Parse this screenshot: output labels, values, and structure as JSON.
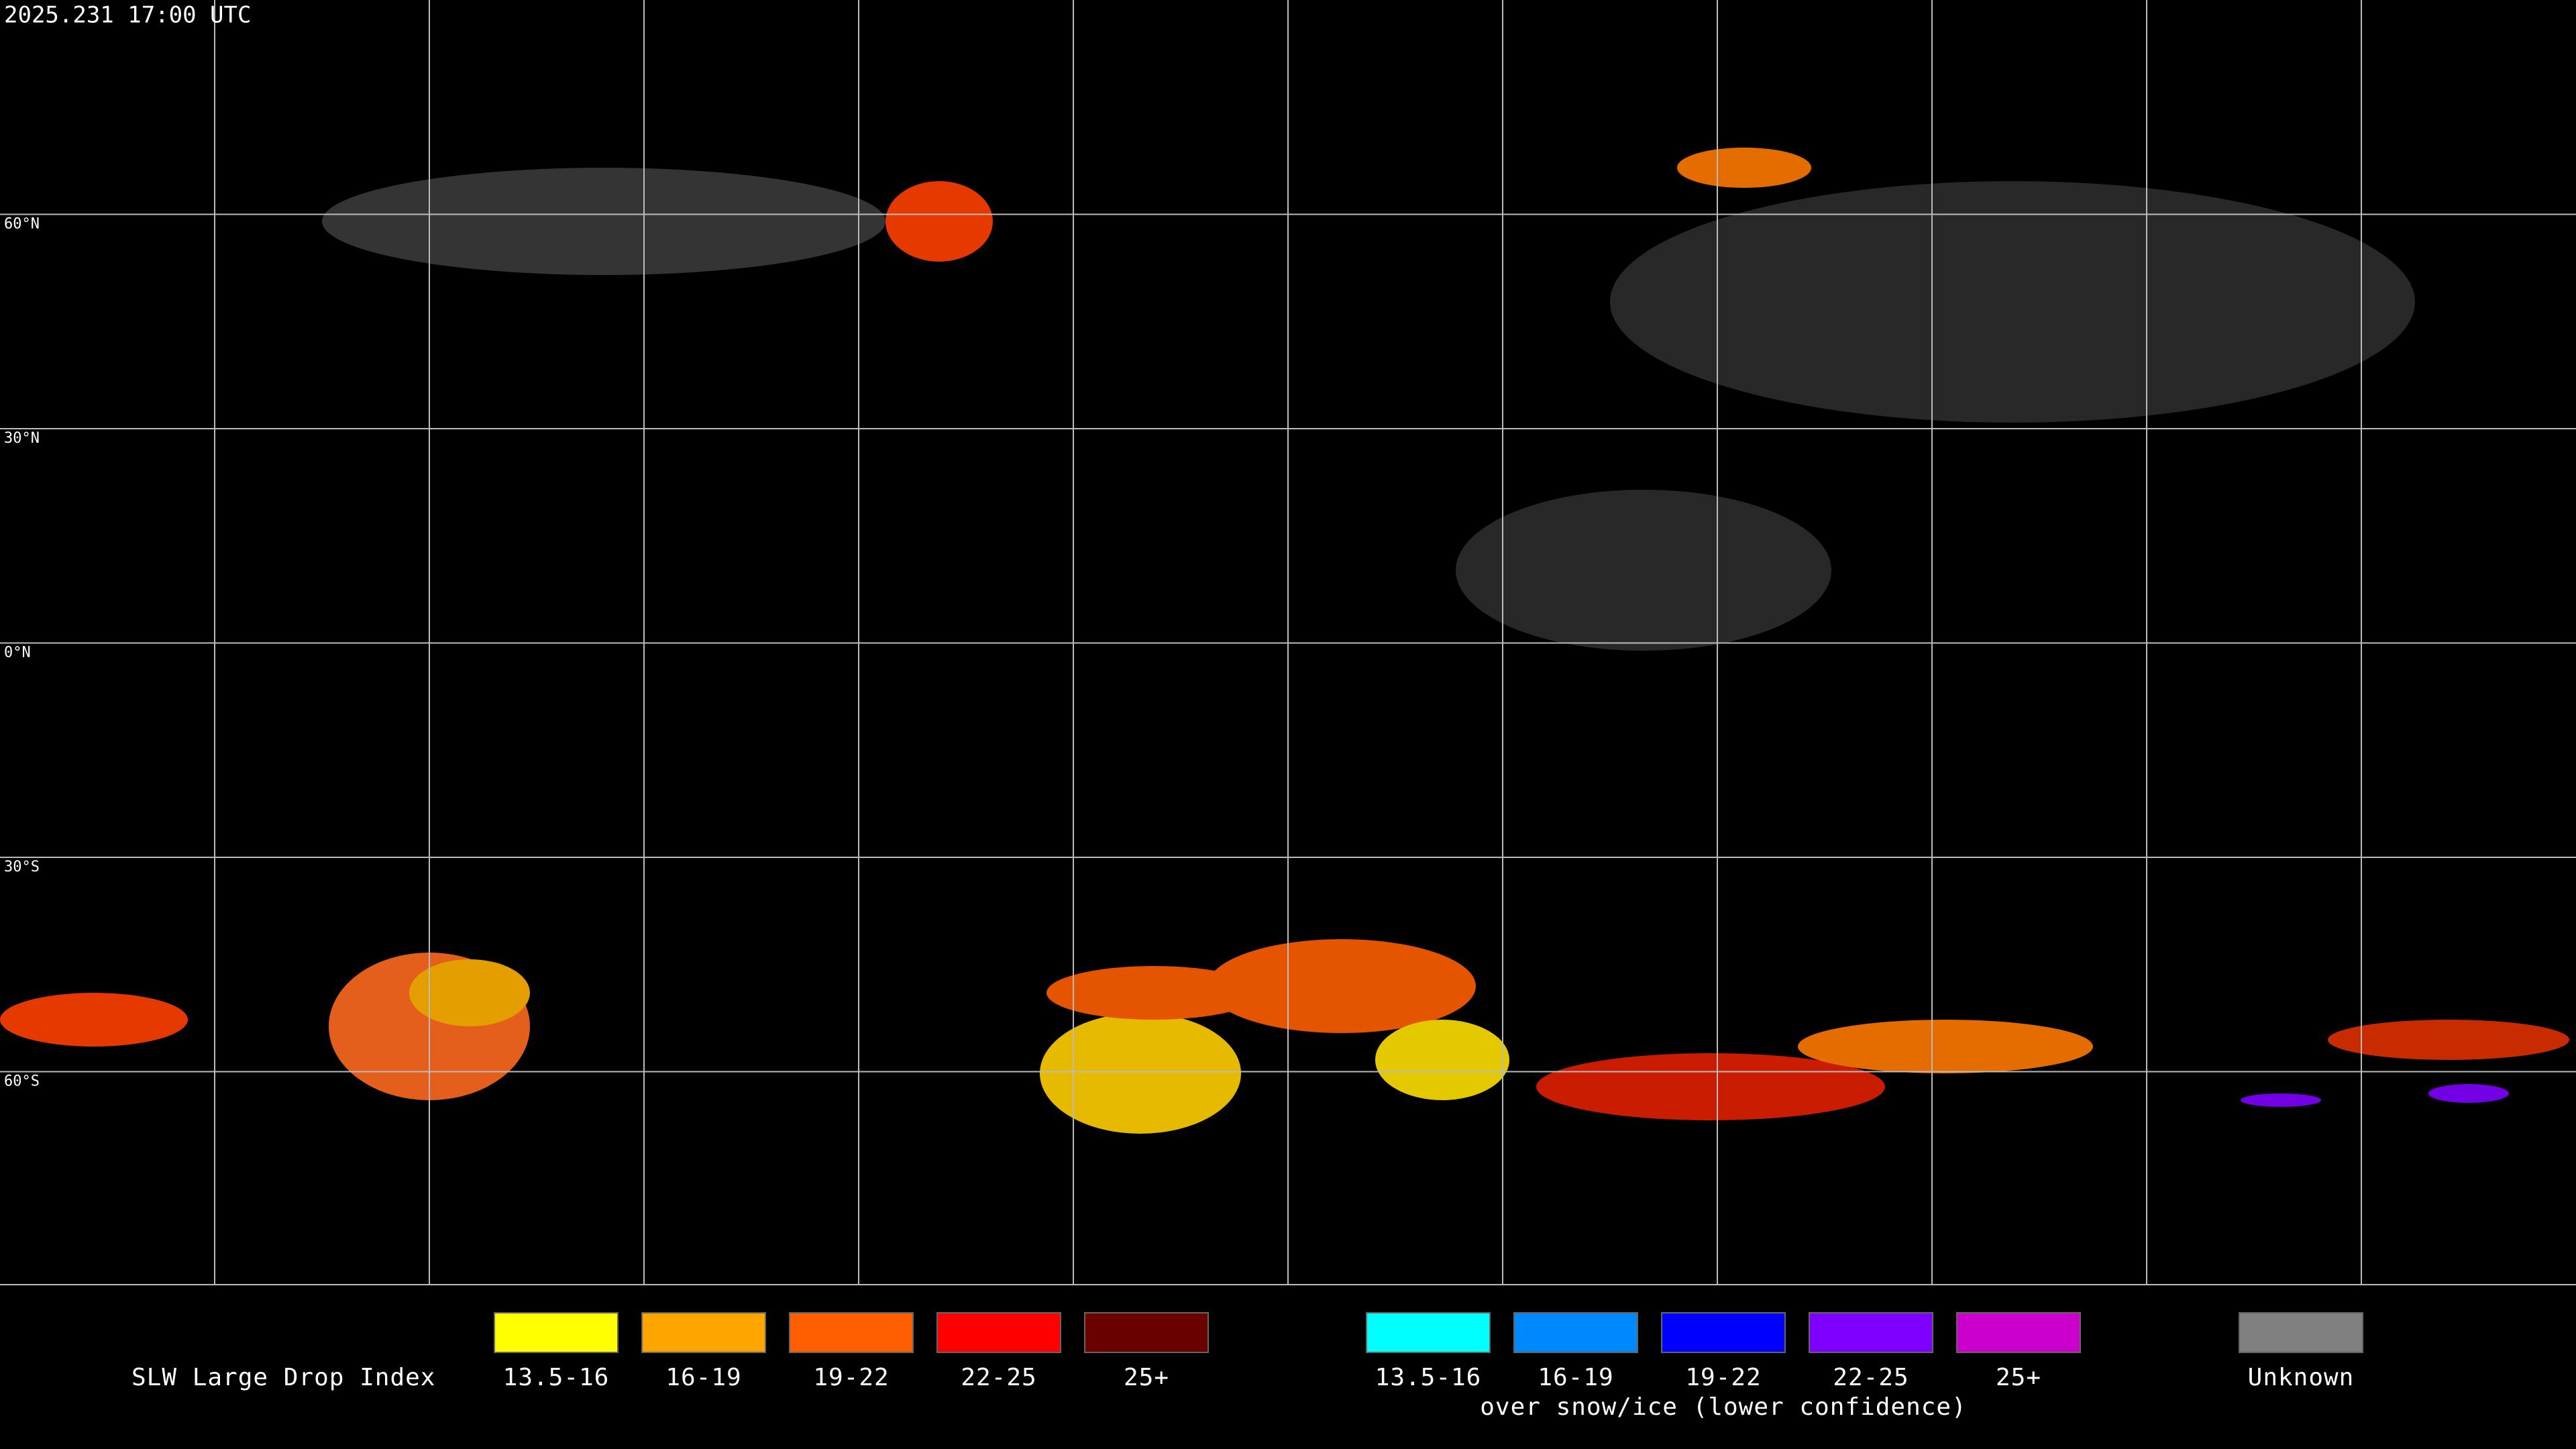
{
  "header": {
    "timestamp": "2025.231 17:00 UTC"
  },
  "map": {
    "latitude_labels": [
      "60°N",
      "30°N",
      "0°N",
      "30°S",
      "60°S"
    ]
  },
  "legend": {
    "title": "SLW Large Drop Index",
    "groups": [
      {
        "items": [
          {
            "label": "13.5-16",
            "color": "#ffff00"
          },
          {
            "label": "16-19",
            "color": "#ffa500"
          },
          {
            "label": "19-22",
            "color": "#ff5f00"
          },
          {
            "label": "22-25",
            "color": "#ff0000"
          },
          {
            "label": "25+",
            "color": "#6b0000"
          }
        ]
      },
      {
        "items": [
          {
            "label": "13.5-16",
            "color": "#00ffff"
          },
          {
            "label": "16-19",
            "color": "#0088ff"
          },
          {
            "label": "19-22",
            "color": "#0000ff"
          },
          {
            "label": "22-25",
            "color": "#8000ff"
          },
          {
            "label": "25+",
            "color": "#cc00cc"
          }
        ],
        "caption": "over snow/ice (lower confidence)"
      },
      {
        "items": [
          {
            "label": "Unknown",
            "color": "#808080"
          }
        ]
      }
    ]
  }
}
